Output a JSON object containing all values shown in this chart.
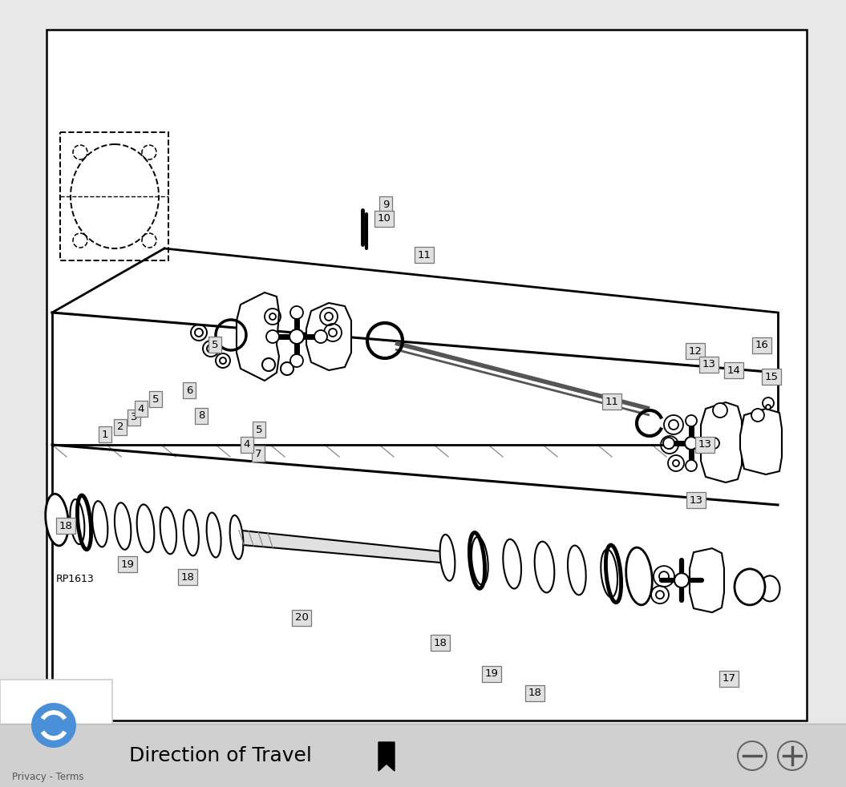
{
  "bg_color": "#e8e8e8",
  "diagram_bg": "#ffffff",
  "footer_bg": "#d0d0d0",
  "title_text": "Direction of Travel",
  "title_fontsize": 18,
  "rp_label": "RP1613",
  "labels_upper": [
    [
      "1",
      131,
      542
    ],
    [
      "2",
      150,
      533
    ],
    [
      "3",
      167,
      521
    ],
    [
      "4",
      176,
      510
    ],
    [
      "5",
      194,
      498
    ],
    [
      "5",
      323,
      536
    ],
    [
      "5",
      268,
      430
    ],
    [
      "6",
      236,
      487
    ],
    [
      "7",
      322,
      566
    ],
    [
      "8",
      251,
      519
    ],
    [
      "9",
      481,
      255
    ],
    [
      "10",
      479,
      273
    ],
    [
      "11",
      529,
      318
    ],
    [
      "11",
      763,
      501
    ],
    [
      "12",
      867,
      438
    ],
    [
      "13",
      884,
      455
    ],
    [
      "14",
      915,
      462
    ],
    [
      "15",
      962,
      470
    ],
    [
      "16",
      950,
      431
    ],
    [
      "13",
      879,
      555
    ],
    [
      "13",
      868,
      624
    ],
    [
      "4",
      308,
      555
    ]
  ],
  "labels_lower": [
    [
      "17",
      909,
      847
    ],
    [
      "18",
      82,
      656
    ],
    [
      "18",
      234,
      720
    ],
    [
      "18",
      549,
      802
    ],
    [
      "18",
      667,
      865
    ],
    [
      "19",
      159,
      704
    ],
    [
      "19",
      613,
      841
    ],
    [
      "20",
      376,
      771
    ]
  ]
}
